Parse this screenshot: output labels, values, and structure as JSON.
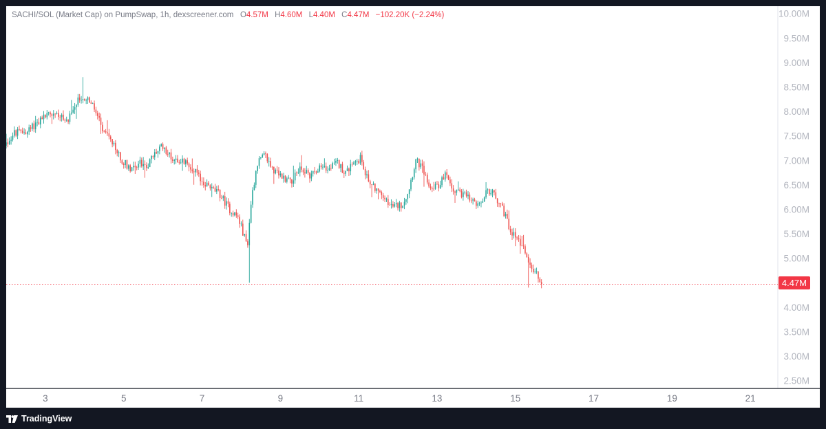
{
  "legend": {
    "symbol": "SACHI/SOL (Market Cap) on PumpSwap, 1h, dexscreener.com",
    "open_key": "O",
    "open_val": "4.57M",
    "high_key": "H",
    "high_val": "4.60M",
    "low_key": "L",
    "low_val": "4.40M",
    "close_key": "C",
    "close_val": "4.47M",
    "change": "−102.20K (−2.24%)"
  },
  "price_tag": "4.47M",
  "branding": {
    "name": "TradingView"
  },
  "colors": {
    "up": "#26a69a",
    "down": "#ef5350",
    "axis_text": "#b2b5be",
    "dark_frame": "#131722",
    "last_price": "#f23645"
  },
  "chart_data": {
    "type": "candlestick",
    "xlabel": "",
    "ylabel": "",
    "y_axis_labels": [
      "10.00M",
      "9.50M",
      "9.00M",
      "8.50M",
      "8.00M",
      "7.50M",
      "7.00M",
      "6.50M",
      "6.00M",
      "5.50M",
      "5.00M",
      "4.00M",
      "3.50M",
      "3.00M",
      "2.50M"
    ],
    "y_axis_values": [
      10.0,
      9.5,
      9.0,
      8.5,
      8.0,
      7.5,
      7.0,
      6.5,
      6.0,
      5.5,
      5.0,
      4.0,
      3.5,
      3.0,
      2.5
    ],
    "x_axis_labels": [
      "3",
      "5",
      "7",
      "9",
      "11",
      "13",
      "15",
      "17",
      "19",
      "21"
    ],
    "x_axis_days": [
      3,
      5,
      7,
      9,
      11,
      13,
      15,
      17,
      19,
      21
    ],
    "ylim_millions": [
      2.34,
      10.15
    ],
    "xlim_days": [
      2.0,
      21.7
    ],
    "last_price": 4.47,
    "last_price_line": "dotted",
    "unit": "millions",
    "key_path": [
      [
        2.0,
        7.3
      ],
      [
        2.25,
        7.55
      ],
      [
        2.6,
        7.6
      ],
      [
        2.8,
        7.75
      ],
      [
        3.1,
        7.95
      ],
      [
        3.4,
        7.95
      ],
      [
        3.55,
        7.75
      ],
      [
        3.75,
        8.05
      ],
      [
        3.95,
        8.3
      ],
      [
        4.15,
        8.25
      ],
      [
        4.35,
        7.95
      ],
      [
        4.5,
        7.6
      ],
      [
        4.7,
        7.4
      ],
      [
        5.0,
        7.0
      ],
      [
        5.2,
        6.85
      ],
      [
        5.45,
        6.95
      ],
      [
        5.65,
        6.9
      ],
      [
        5.85,
        7.15
      ],
      [
        6.05,
        7.3
      ],
      [
        6.25,
        7.05
      ],
      [
        6.5,
        7.0
      ],
      [
        6.8,
        6.85
      ],
      [
        7.0,
        6.6
      ],
      [
        7.25,
        6.45
      ],
      [
        7.5,
        6.3
      ],
      [
        7.75,
        6.0
      ],
      [
        7.95,
        5.85
      ],
      [
        8.1,
        5.5
      ],
      [
        8.2,
        5.25
      ],
      [
        8.3,
        6.2
      ],
      [
        8.45,
        6.95
      ],
      [
        8.65,
        7.1
      ],
      [
        8.9,
        6.75
      ],
      [
        9.1,
        6.65
      ],
      [
        9.35,
        6.6
      ],
      [
        9.55,
        6.85
      ],
      [
        9.8,
        6.7
      ],
      [
        10.0,
        6.85
      ],
      [
        10.25,
        6.8
      ],
      [
        10.5,
        6.95
      ],
      [
        10.7,
        6.75
      ],
      [
        10.9,
        6.9
      ],
      [
        11.1,
        7.05
      ],
      [
        11.25,
        6.65
      ],
      [
        11.45,
        6.45
      ],
      [
        11.7,
        6.2
      ],
      [
        11.9,
        6.05
      ],
      [
        12.15,
        6.1
      ],
      [
        12.3,
        6.35
      ],
      [
        12.5,
        7.0
      ],
      [
        12.65,
        6.85
      ],
      [
        12.85,
        6.5
      ],
      [
        13.05,
        6.45
      ],
      [
        13.25,
        6.7
      ],
      [
        13.45,
        6.4
      ],
      [
        13.7,
        6.3
      ],
      [
        13.95,
        6.15
      ],
      [
        14.15,
        6.05
      ],
      [
        14.3,
        6.4
      ],
      [
        14.5,
        6.3
      ],
      [
        14.7,
        6.05
      ],
      [
        14.9,
        5.6
      ],
      [
        15.1,
        5.4
      ],
      [
        15.3,
        5.15
      ],
      [
        15.45,
        4.8
      ],
      [
        15.6,
        4.65
      ],
      [
        15.7,
        4.47
      ]
    ],
    "wick_events": [
      {
        "day": 8.2,
        "low": 4.5
      },
      {
        "day": 3.95,
        "high": 8.7
      },
      {
        "day": 15.35,
        "low": 4.4
      }
    ]
  }
}
